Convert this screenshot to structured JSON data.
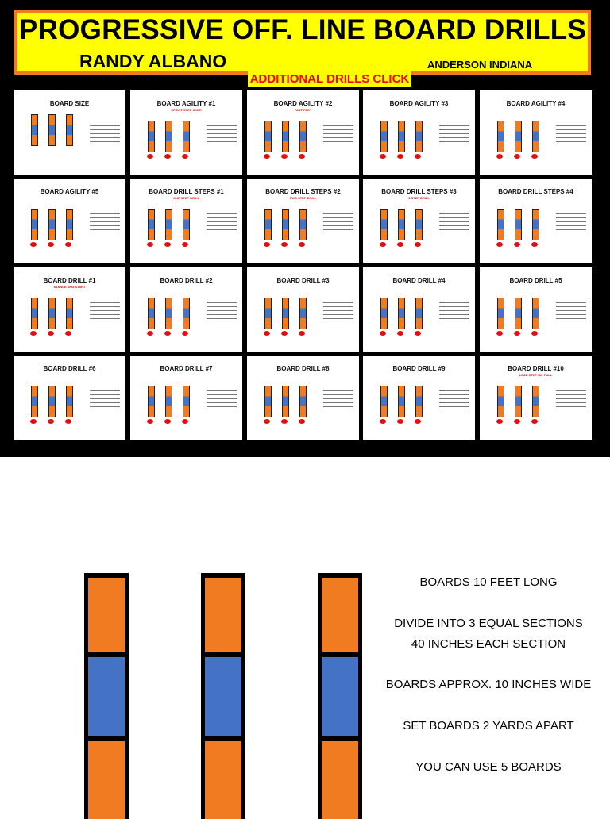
{
  "header": {
    "title": "PROGRESSIVE OFF. LINE BOARD DRILLS",
    "author": "RANDY ALBANO",
    "location": "ANDERSON INDIANA",
    "link": "ADDITIONAL DRILLS CLICK"
  },
  "colors": {
    "orange": "#f07b21",
    "blue": "#4472c4",
    "yellow": "#ffff00",
    "red": "#ff0000"
  },
  "slides": [
    {
      "title": "BOARD SIZE",
      "subtitle": ""
    },
    {
      "title": "BOARD AGILITY #1",
      "subtitle": "SPRINT STEP OVER"
    },
    {
      "title": "BOARD AGILITY #2",
      "subtitle": "FAST FEET"
    },
    {
      "title": "BOARD AGILITY #3",
      "subtitle": ""
    },
    {
      "title": "BOARD AGILITY #4",
      "subtitle": ""
    },
    {
      "title": "BOARD AGILITY #5",
      "subtitle": ""
    },
    {
      "title": "BOARD DRILL STEPS #1",
      "subtitle": "ONE STEP DRILL"
    },
    {
      "title": "BOARD DRILL STEPS #2",
      "subtitle": "TWO STEP DRILL"
    },
    {
      "title": "BOARD DRILL STEPS #3",
      "subtitle": "3 STEP DRILL"
    },
    {
      "title": "BOARD DRILL STEPS #4",
      "subtitle": ""
    },
    {
      "title": "BOARD DRILL #1",
      "subtitle": "STANCE AND START"
    },
    {
      "title": "BOARD DRILL #2",
      "subtitle": ""
    },
    {
      "title": "BOARD DRILL #3",
      "subtitle": ""
    },
    {
      "title": "BOARD DRILL #4",
      "subtitle": ""
    },
    {
      "title": "BOARD DRILL #5",
      "subtitle": ""
    },
    {
      "title": "BOARD DRILL #6",
      "subtitle": ""
    },
    {
      "title": "BOARD DRILL #7",
      "subtitle": ""
    },
    {
      "title": "BOARD DRILL #8",
      "subtitle": ""
    },
    {
      "title": "BOARD DRILL #9",
      "subtitle": ""
    },
    {
      "title": "BOARD DRILL #10",
      "subtitle": "LEAD STEP R/L PULL"
    }
  ],
  "board_info": [
    "BOARDS 10 FEET LONG",
    "DIVIDE INTO 3  EQUAL SECTIONS",
    "40 INCHES EACH SECTION",
    "BOARDS APPROX. 10 INCHES WIDE",
    "SET BOARDS 2 YARDS APART",
    "YOU CAN USE 5 BOARDS"
  ]
}
